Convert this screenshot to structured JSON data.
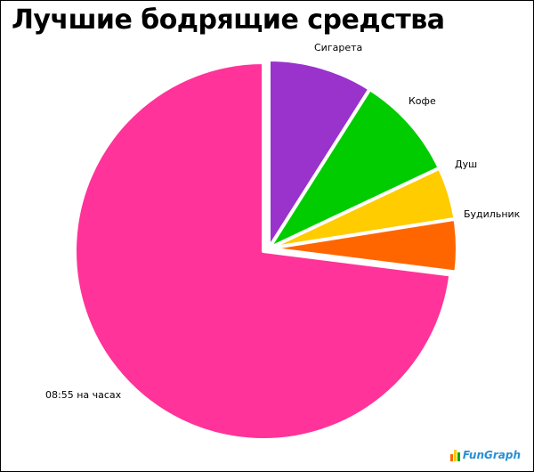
{
  "chart_data": {
    "type": "pie",
    "title": "Лучшие бодрящие средства",
    "slices": [
      {
        "label": "Сигарета",
        "value": 9,
        "color": "#9933cc"
      },
      {
        "label": "Кофе",
        "value": 9,
        "color": "#00cc00"
      },
      {
        "label": "Душ",
        "value": 4.5,
        "color": "#ffcc00"
      },
      {
        "label": "Будильник",
        "value": 4.5,
        "color": "#ff6600"
      },
      {
        "label": "08:55 на часах",
        "value": 73,
        "color": "#ff3399"
      }
    ],
    "exploded_slice": "08:55 на часах"
  },
  "branding": {
    "text": "FunGraph",
    "icon_colors": [
      "#ff6600",
      "#ffcc00",
      "#00aa00"
    ]
  }
}
